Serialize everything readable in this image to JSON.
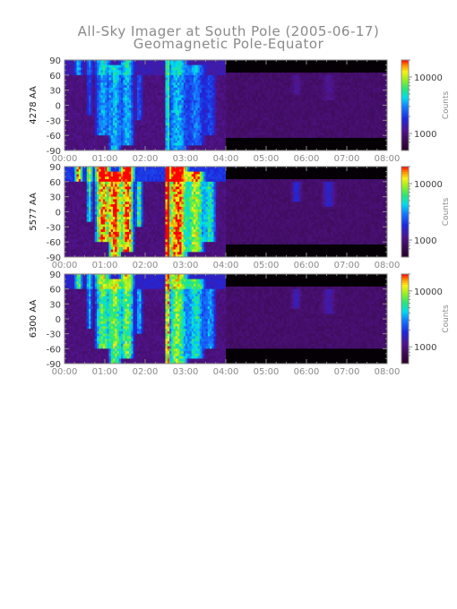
{
  "figure": {
    "title": "All-Sky Imager at South Pole (2005-06-17)",
    "subtitle": "Geomagnetic Pole-Equator"
  },
  "chart_data": [
    {
      "type": "heatmap",
      "ylabel": "4278 AA",
      "x_ticks": [
        "00:00",
        "01:00",
        "02:00",
        "03:00",
        "04:00",
        "05:00",
        "06:00",
        "07:00",
        "08:00"
      ],
      "y_ticks": [
        90,
        60,
        30,
        0,
        -30,
        -60,
        -90
      ],
      "ylim": [
        -90,
        90
      ],
      "colorbar": {
        "label": "Counts",
        "ticks": [
          10000,
          1000
        ],
        "scale": "log"
      },
      "intensity": 0.45
    },
    {
      "type": "heatmap",
      "ylabel": "5577 AA",
      "x_ticks": [
        "00:00",
        "01:00",
        "02:00",
        "03:00",
        "04:00",
        "05:00",
        "06:00",
        "07:00",
        "08:00"
      ],
      "y_ticks": [
        90,
        60,
        30,
        0,
        -30,
        -60,
        -90
      ],
      "ylim": [
        -90,
        90
      ],
      "colorbar": {
        "label": "Counts",
        "ticks": [
          10000,
          1000
        ],
        "scale": "log"
      },
      "intensity": 1.0
    },
    {
      "type": "heatmap",
      "ylabel": "6300 AA",
      "x_ticks": [
        "00:00",
        "01:00",
        "02:00",
        "03:00",
        "04:00",
        "05:00",
        "06:00",
        "07:00",
        "08:00"
      ],
      "y_ticks": [
        90,
        60,
        30,
        0,
        -30,
        -60,
        -90
      ],
      "ylim": [
        -90,
        90
      ],
      "colorbar": {
        "label": "Counts",
        "ticks": [
          10000,
          1000
        ],
        "scale": "log"
      },
      "intensity": 0.7
    }
  ],
  "colors": {
    "axis": "#8a8a8a",
    "label": "#404040",
    "background_low": "#3a0a4a",
    "night_gap": "#050005"
  }
}
